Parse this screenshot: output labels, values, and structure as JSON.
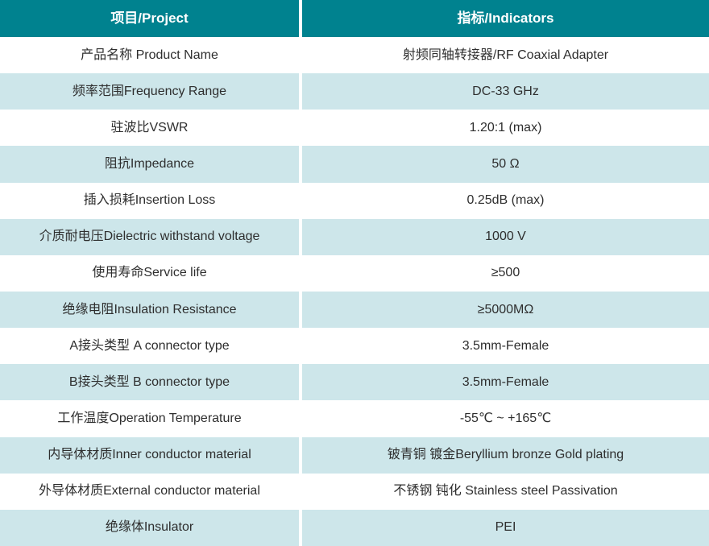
{
  "table": {
    "headers": {
      "project": "项目/Project",
      "indicators": "指标/Indicators"
    },
    "rows": [
      {
        "project": "产品名称 Product Name",
        "indicator": "射频同轴转接器/RF Coaxial Adapter"
      },
      {
        "project": "频率范围Frequency Range",
        "indicator": "DC-33 GHz"
      },
      {
        "project": "驻波比VSWR",
        "indicator": "1.20:1 (max)"
      },
      {
        "project": "阻抗Impedance",
        "indicator": "50 Ω"
      },
      {
        "project": "插入损耗Insertion Loss",
        "indicator": "0.25dB (max)"
      },
      {
        "project": "介质耐电压Dielectric withstand voltage",
        "indicator": "1000 V"
      },
      {
        "project": "使用寿命Service life",
        "indicator": "≥500"
      },
      {
        "project": "绝缘电阻Insulation Resistance",
        "indicator": "≥5000MΩ"
      },
      {
        "project": "A接头类型 A connector type",
        "indicator": "3.5mm-Female"
      },
      {
        "project": "B接头类型 B connector type",
        "indicator": "3.5mm-Female"
      },
      {
        "project": "工作温度Operation Temperature",
        "indicator": "-55℃ ~ +165℃"
      },
      {
        "project": "内导体材质Inner conductor material",
        "indicator": "铍青铜 镀金Beryllium bronze Gold plating"
      },
      {
        "project": "外导体材质External conductor material",
        "indicator": "不锈钢 钝化 Stainless steel Passivation"
      },
      {
        "project": "绝缘体Insulator",
        "indicator": "PEI"
      }
    ],
    "colors": {
      "header_bg": "#00828f",
      "header_text": "#ffffff",
      "row_bg": "#ffffff",
      "row_alt_bg": "#cde6ea",
      "divider": "#ffffff",
      "text": "#2e2e2e"
    }
  }
}
